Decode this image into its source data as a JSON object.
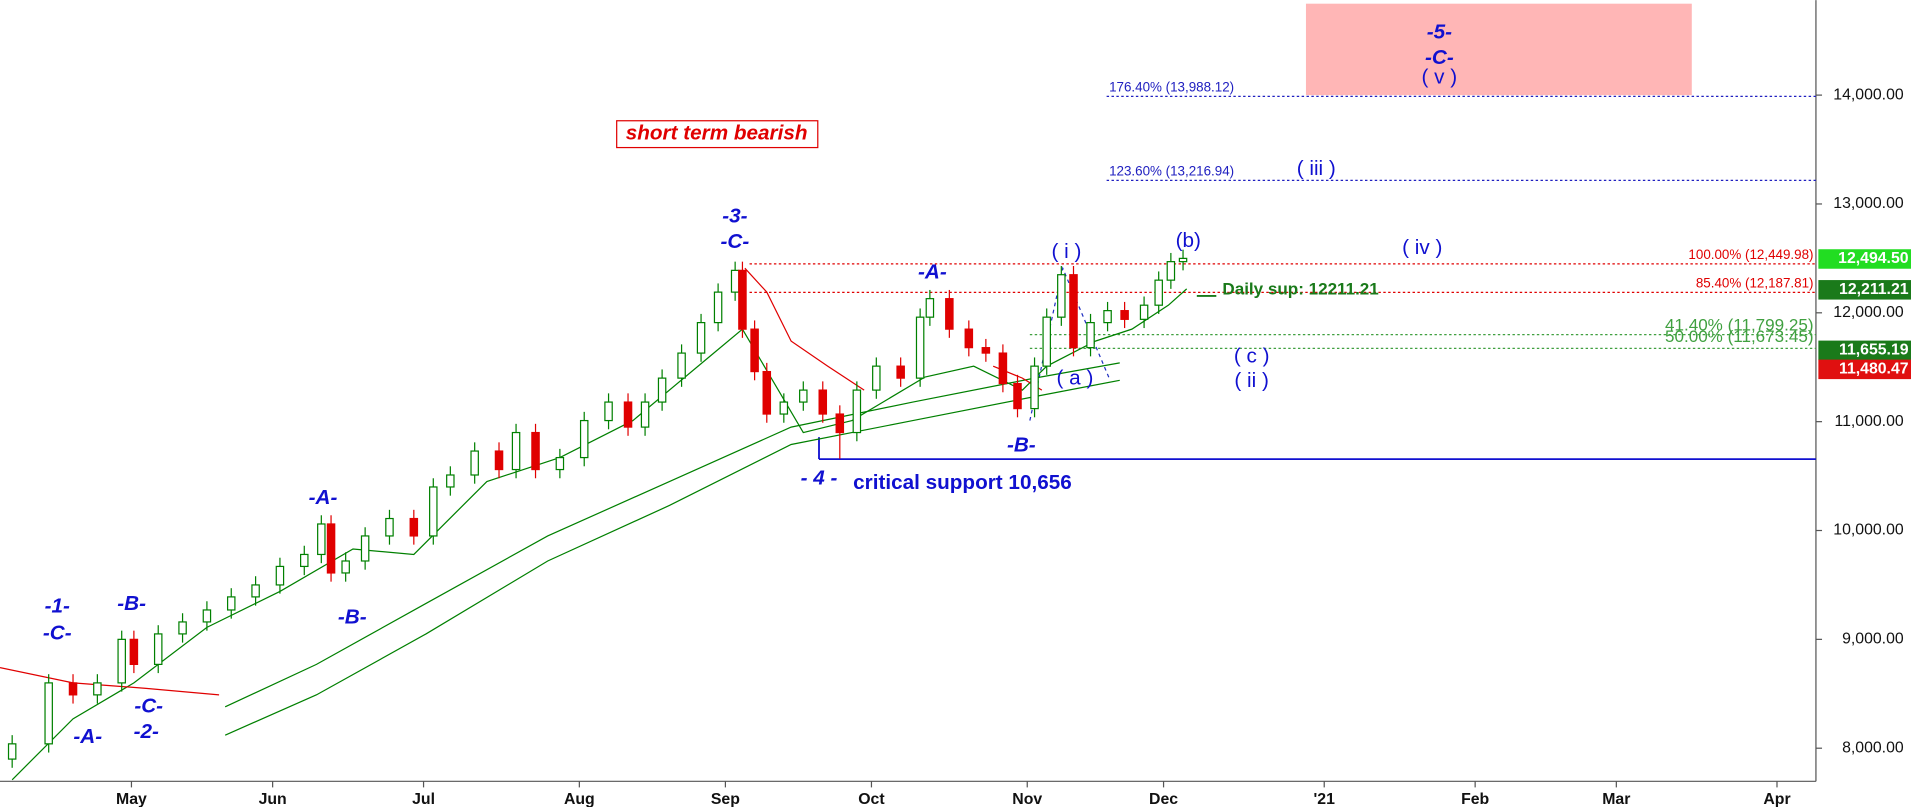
{
  "chart_data": {
    "type": "candlestick",
    "candles": {
      "x": [
        2.5,
        10,
        15,
        20,
        25,
        27.5,
        32.5,
        37.5,
        42.5,
        47.5,
        52.5,
        57.5,
        62.5,
        66,
        68,
        71,
        75,
        80,
        85,
        89,
        92.5,
        97.5,
        102.5,
        106,
        110,
        115,
        120,
        125,
        129,
        132.5,
        136,
        140,
        144,
        147.5,
        151,
        152.5,
        155,
        157.5,
        161,
        165,
        169,
        172.5,
        176,
        180,
        185,
        189,
        191,
        195,
        199,
        202.5,
        206,
        209,
        212.5,
        215,
        218,
        220.5,
        224,
        227.5,
        231,
        235,
        238,
        240.5,
        243
      ],
      "open": [
        7900,
        8040,
        8600,
        8490,
        8600,
        9000,
        8770,
        9050,
        9160,
        9270,
        9390,
        9500,
        9670,
        9780,
        10060,
        9610,
        9720,
        9950,
        10110,
        9950,
        10400,
        10510,
        10730,
        10560,
        10900,
        10560,
        10670,
        11010,
        11180,
        10950,
        11180,
        11400,
        11630,
        11910,
        12190,
        12390,
        11850,
        11460,
        11070,
        11180,
        11290,
        11070,
        10900,
        11290,
        11510,
        11400,
        11960,
        12130,
        11850,
        11680,
        11630,
        11350,
        11120,
        11510,
        11960,
        12350,
        11680,
        11910,
        12020,
        11940,
        12070,
        12300,
        12470
      ],
      "high": [
        8120,
        8680,
        8680,
        8680,
        9080,
        9080,
        9130,
        9240,
        9350,
        9470,
        9580,
        9750,
        9860,
        10140,
        10140,
        9800,
        10030,
        10190,
        10190,
        10480,
        10590,
        10810,
        10810,
        10980,
        10980,
        10750,
        11090,
        11260,
        11260,
        11260,
        11480,
        11710,
        11990,
        12270,
        12470,
        12470,
        11930,
        11540,
        11260,
        11370,
        11370,
        11150,
        11370,
        11590,
        11590,
        12040,
        12210,
        12210,
        11930,
        11760,
        11710,
        11430,
        11590,
        12040,
        12430,
        12430,
        11990,
        12100,
        12100,
        12150,
        12380,
        12550,
        12580
      ],
      "low": [
        7820,
        7960,
        8410,
        8410,
        8520,
        8690,
        8690,
        8970,
        9080,
        9190,
        9310,
        9420,
        9590,
        9700,
        9530,
        9530,
        9640,
        9870,
        9870,
        9870,
        10320,
        10430,
        10480,
        10480,
        10480,
        10480,
        10590,
        10930,
        10870,
        10870,
        11100,
        11320,
        11550,
        11830,
        12110,
        11770,
        11380,
        10990,
        10990,
        11100,
        10990,
        10660,
        10820,
        11210,
        11320,
        11320,
        11880,
        11770,
        11600,
        11550,
        11270,
        11040,
        11040,
        11430,
        11880,
        11600,
        11600,
        11830,
        11860,
        11860,
        11990,
        12220,
        12390
      ],
      "close": [
        8040,
        8600,
        8490,
        8600,
        9000,
        8770,
        9050,
        9160,
        9270,
        9390,
        9500,
        9670,
        9780,
        10060,
        9610,
        9720,
        9950,
        10110,
        9950,
        10400,
        10510,
        10730,
        10560,
        10900,
        10560,
        10670,
        11010,
        11180,
        10950,
        11180,
        11400,
        11630,
        11910,
        12190,
        12390,
        11850,
        11460,
        11070,
        11180,
        11290,
        11070,
        10900,
        11290,
        11510,
        11400,
        11960,
        12130,
        11850,
        11680,
        11630,
        11350,
        11120,
        11510,
        11960,
        12350,
        11680,
        11910,
        12020,
        11940,
        12070,
        12300,
        12470,
        12500
      ]
    },
    "up_color": "#008000",
    "down_color": "#e00000",
    "xlim": [
      0,
      373
    ],
    "xticks": [
      {
        "value": 27,
        "label": "May"
      },
      {
        "value": 56,
        "label": "Jun"
      },
      {
        "value": 87,
        "label": "Jul"
      },
      {
        "value": 119,
        "label": "Aug"
      },
      {
        "value": 149,
        "label": "Sep"
      },
      {
        "value": 179,
        "label": "Oct"
      },
      {
        "value": 211,
        "label": "Nov"
      },
      {
        "value": 239,
        "label": "Dec"
      },
      {
        "value": 272,
        "label": "'21"
      },
      {
        "value": 303,
        "label": "Feb"
      },
      {
        "value": 332,
        "label": "Mar"
      },
      {
        "value": 365,
        "label": "Apr"
      }
    ],
    "ylim": [
      7707,
      14873
    ],
    "yticks": [
      {
        "value": 8000,
        "label": "8,000.00"
      },
      {
        "value": 9000,
        "label": "9,000.00"
      },
      {
        "value": 10000,
        "label": "10,000.00"
      },
      {
        "value": 11000,
        "label": "11,000.00"
      },
      {
        "value": 12000,
        "label": "12,000.00"
      },
      {
        "value": 13000,
        "label": "13,000.00"
      },
      {
        "value": 14000,
        "label": "14,000.00"
      }
    ],
    "ma_lines": [
      {
        "color": "#008000",
        "x": [
          2.5,
          15,
          27.5,
          42.5,
          57.5,
          72.5,
          85,
          100,
          115,
          130,
          145,
          152.5,
          165,
          175,
          190,
          200,
          210,
          215,
          225,
          232.5,
          240,
          243.75
        ],
        "values": [
          7710,
          8270,
          8600,
          9110,
          9440,
          9830,
          9780,
          10450,
          10670,
          11010,
          11570,
          11850,
          10900,
          11010,
          11410,
          11510,
          11290,
          11510,
          11740,
          11850,
          12070,
          12220
        ]
      },
      {
        "color": "#008000",
        "x": [
          46.25,
          65,
          87.5,
          112.5,
          137.5,
          162.5,
          187.5,
          212.5,
          230
        ],
        "values": [
          8380,
          8770,
          9330,
          9950,
          10450,
          10950,
          11180,
          11400,
          11540
        ]
      },
      {
        "color": "#008000",
        "x": [
          46.25,
          65,
          87.5,
          112.5,
          137.5,
          162.5,
          187.5,
          212.5,
          230
        ],
        "values": [
          8120,
          8490,
          9050,
          9720,
          10230,
          10790,
          11010,
          11230,
          11380
        ]
      },
      {
        "color": "#e00000",
        "x": [
          0,
          15,
          30,
          45,
          46,
          153,
          157.5,
          162.5,
          170,
          177.5,
          178,
          204,
          210,
          214
        ],
        "values": [
          8740,
          8600,
          8550,
          8490,
          null,
          12410,
          12190,
          11740,
          11510,
          11290,
          null,
          11510,
          11400,
          11290
        ]
      }
    ],
    "levels": [
      {
        "label": "176.40% (13,988.12)",
        "value": 13988.12,
        "color": "#2020c0"
      },
      {
        "label": "123.60% (13,216.94)",
        "value": 13216.94,
        "color": "#2020c0"
      },
      {
        "label": "100.00% (12,449.98)",
        "value": 12449.98,
        "color": "#e00000"
      },
      {
        "label": "85.40% (12,187.81)",
        "value": 12187.81,
        "color": "#e00000"
      },
      {
        "label": "41.40% (11,799.25)",
        "value": 11799.25,
        "color": "#40a040"
      },
      {
        "label": "50.00% (11,673.45)",
        "value": 11673.45,
        "color": "#40a040"
      }
    ],
    "price_tags": [
      {
        "value": 12494.5,
        "label": "12,494.50",
        "color": "#22dd22"
      },
      {
        "value": 12211.21,
        "label": "12,211.21",
        "color": "#1a7a1a"
      },
      {
        "value": 11655.19,
        "label": "11,655.19",
        "color": "#1a7a1a"
      },
      {
        "value": 11480.47,
        "label": "11,480.47",
        "color": "#e01010"
      }
    ],
    "support": {
      "value": 10656,
      "label": "critical support 10,656",
      "color": "#1010d0"
    },
    "daily_support": {
      "value": 12211.21,
      "label": "Daily sup: 12211.21",
      "color": "#1a7a1a"
    },
    "target_zone": {
      "x": [
        268.25,
        347.5
      ],
      "y": [
        14000,
        14840
      ],
      "color": "#ffb6b6"
    },
    "annotations": [
      "-1-",
      "-C-",
      "-A-",
      "-B-",
      "-C-",
      "-2-",
      "-A-",
      "-B-",
      "-3-",
      "-C-",
      "- 4 -",
      "-A-",
      "-B-",
      "( i )",
      "( a )",
      "(b)",
      "( c )",
      "( ii )",
      "( iii )",
      "( iv )",
      "-5-",
      "-C-",
      "( v )"
    ],
    "note": "short term bearish"
  }
}
